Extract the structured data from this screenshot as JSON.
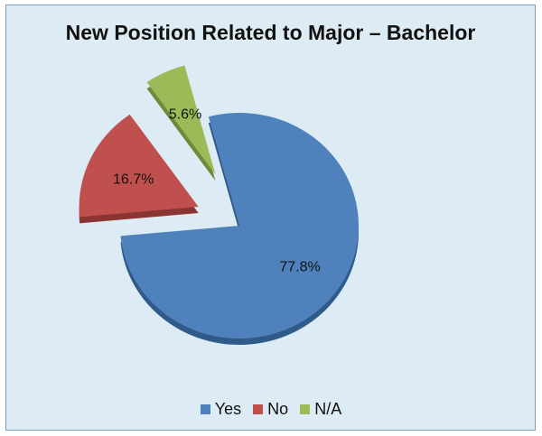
{
  "chart_data": {
    "type": "pie",
    "title": "New Position Related to Major – Bachelor",
    "slices": [
      {
        "label": "Yes",
        "value": 77.8,
        "value_label": "77.8%",
        "color": "#4f81bd",
        "dark": "#2f5a8a",
        "exploded": false
      },
      {
        "label": "No",
        "value": 16.7,
        "value_label": "16.7%",
        "color": "#c0504d",
        "dark": "#8c3431",
        "exploded": true
      },
      {
        "label": "N/A",
        "value": 5.6,
        "value_label": "5.6%",
        "color": "#9bbb59",
        "dark": "#6f8a3a",
        "exploded": true
      }
    ],
    "legend_position": "bottom",
    "style": "3d-exploded"
  }
}
